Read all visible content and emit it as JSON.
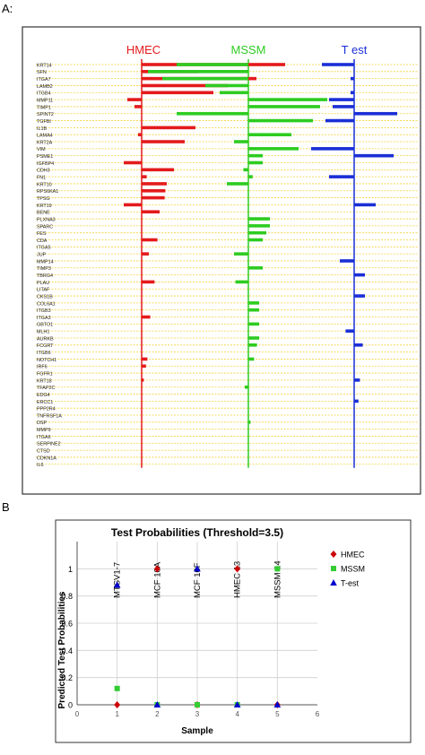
{
  "panel_labels": {
    "a": "A:",
    "b": "B"
  },
  "chart_data": [
    {
      "type": "bar",
      "orientation": "horizontal-diverging",
      "group_labels": [
        "HMEC",
        "MSSM",
        "T est"
      ],
      "group_colors": [
        "#e41a1c",
        "#2ecc21",
        "#1a2fd6"
      ],
      "grid": true,
      "categories": [
        "KRT14",
        "SFN",
        "ITGA7",
        "LAMB2",
        "ITGB4",
        "MMP11",
        "TIMP1",
        "SPINT2",
        "TGFBI",
        "IL1B",
        "LAMA4",
        "KRT2A",
        "VIM",
        "PSME1",
        "IGFBP4",
        "CDH3",
        "FN1",
        "KRT10",
        "RPS6KA1",
        "TPSG",
        "KRT19",
        "BENE",
        "PLXNA3",
        "SPARC",
        "FES",
        "CDA",
        "ITGA5",
        "JUP",
        "MMP14",
        "TIMP3",
        "TBRG4",
        "PLAU",
        "LITAF",
        "CKS1B",
        "COL6A1",
        "ITGB3",
        "ITGA3",
        "GBTO1",
        "MLH1",
        "AURKB",
        "FCGRT",
        "ITGB6",
        "NOTCH1",
        "IRF6",
        "FGFR1",
        "KRT18",
        "TFAP2C",
        "EDG4",
        "ERCC1",
        "PPP2R4",
        "TNFRSF1A",
        "DSP",
        "MMP9",
        "ITGA6",
        "SERPINE2",
        "CTSD",
        "CDKN1A",
        "IL6"
      ],
      "series": [
        {
          "name": "HMEC",
          "values": [
            2.0,
            0.8,
            1.6,
            1.2,
            1.0,
            -0.2,
            -0.1,
            0,
            0,
            0.75,
            -0.05,
            0.6,
            0,
            0,
            -0.25,
            0.45,
            0.07,
            0.35,
            0.33,
            0.32,
            -0.25,
            0.25,
            0,
            0,
            0,
            0.22,
            0,
            0.1,
            0,
            0,
            0,
            0.18,
            0,
            0,
            0,
            0,
            0.12,
            0,
            0,
            0,
            0,
            0,
            0.08,
            0.06,
            0,
            0.03,
            0,
            0,
            0,
            0,
            0,
            0,
            0,
            0,
            0,
            0,
            0,
            0
          ]
        },
        {
          "name": "MSSM",
          "values": [
            -1.0,
            -1.4,
            -1.2,
            -0.6,
            -0.4,
            1.1,
            1.0,
            -1.0,
            0.9,
            0,
            0.6,
            -0.2,
            0.7,
            0.2,
            0.2,
            -0.07,
            0.06,
            -0.3,
            0,
            0,
            0,
            0,
            0.3,
            0.3,
            0.25,
            0.2,
            0,
            -0.2,
            0,
            0.2,
            0,
            -0.18,
            0,
            0,
            0.15,
            0.15,
            0,
            0.15,
            0,
            0.15,
            0.12,
            0,
            0.08,
            0,
            0,
            0,
            -0.05,
            0,
            0,
            0,
            0,
            0.03,
            0,
            0,
            0,
            0,
            0,
            0
          ]
        },
        {
          "name": "T est",
          "values": [
            -0.45,
            0,
            -0.05,
            0,
            -0.05,
            -0.35,
            -0.3,
            0.6,
            -0.4,
            0,
            0,
            0,
            -0.6,
            0.55,
            0,
            0,
            -0.35,
            0,
            0,
            0,
            0.3,
            0,
            0,
            0,
            0,
            0,
            0,
            0,
            -0.2,
            0,
            0.15,
            0,
            0,
            0.15,
            0,
            0,
            0,
            0,
            -0.12,
            0,
            0.12,
            0,
            0,
            0,
            0,
            0.08,
            0,
            0,
            0.06,
            0,
            0,
            0,
            0,
            0,
            0,
            0,
            0,
            0
          ]
        }
      ]
    },
    {
      "type": "scatter",
      "title": "Test Probabilities (Threshold=3.5)",
      "xlabel": "Sample",
      "ylabel": "Predicted Test Probabilities",
      "xlim": [
        0,
        6
      ],
      "ylim": [
        0,
        1.2
      ],
      "x_ticks": [
        0,
        1,
        2,
        3,
        4,
        5,
        6
      ],
      "y_ticks": [
        0,
        0.2,
        0.4,
        0.6,
        0.8,
        1
      ],
      "sample_labels": [
        "MTSV1-7",
        "MCF 10A",
        "MCF 10F",
        "HMEC 13",
        "MSSM 14"
      ],
      "legend_position": "right",
      "series": [
        {
          "name": "HMEC",
          "color": "#cc0000",
          "marker": "diamond",
          "x": [
            1,
            2,
            3,
            4,
            5
          ],
          "y": [
            0,
            1,
            0,
            1,
            0
          ]
        },
        {
          "name": "MSSM",
          "color": "#33cc33",
          "marker": "square",
          "x": [
            1,
            2,
            3,
            4,
            5
          ],
          "y": [
            0.12,
            0,
            0,
            0,
            1
          ]
        },
        {
          "name": "T-est",
          "color": "#0000cc",
          "marker": "triangle",
          "x": [
            1,
            2,
            3,
            4,
            5
          ],
          "y": [
            0.88,
            0,
            1,
            0,
            0
          ]
        }
      ]
    }
  ]
}
